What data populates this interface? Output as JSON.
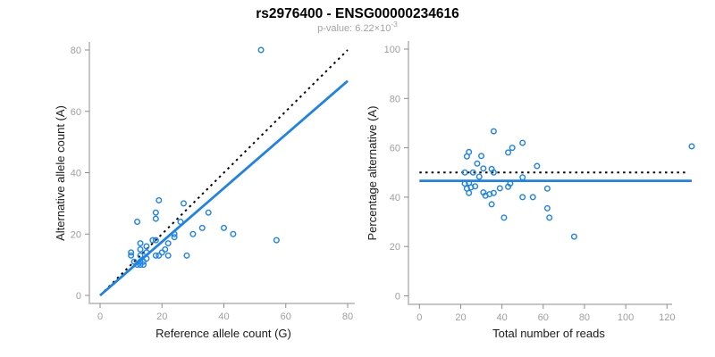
{
  "title": "rs2976400 - ENSG00000234616",
  "subtitle": {
    "prefix": "p-value: ",
    "mantissa": "6.22",
    "times": "×10",
    "exponent": "-3"
  },
  "colors": {
    "point_blue": "#1e82e6",
    "fit_blue": "#1e82e6",
    "identity_black": "#000000",
    "axis_line": "#8c8c8c",
    "tick_label": "#9e9e9e",
    "axis_title_text": "#1a1a1a",
    "subtitle_gray": "#a3a3a3"
  },
  "chart_data": [
    {
      "type": "scatter",
      "name": "allele-counts-panel",
      "xlabel": "Reference allele count (G)",
      "ylabel": "Alternative allele count (A)",
      "xlim": [
        0,
        80
      ],
      "ylim": [
        0,
        80
      ],
      "xticks": [
        0,
        20,
        40,
        60,
        80
      ],
      "yticks": [
        0,
        20,
        40,
        60,
        80
      ],
      "grid": false,
      "legend": "none",
      "points": {
        "x": [
          52,
          12,
          19,
          18,
          18,
          10,
          10,
          13,
          13,
          27,
          15,
          17,
          18,
          11,
          13,
          15,
          26,
          24,
          12,
          13,
          13,
          15,
          14,
          14,
          18,
          19,
          20,
          21,
          22,
          24,
          30,
          33,
          35,
          40,
          43,
          28,
          22,
          57
        ],
        "y": [
          80,
          24,
          31,
          27,
          25,
          14,
          13,
          17,
          15,
          30,
          16,
          18,
          18,
          11,
          13,
          14,
          24,
          20,
          10,
          11,
          10,
          12,
          10,
          11,
          13,
          13,
          14,
          15,
          17,
          19,
          20,
          22,
          27,
          22,
          20,
          13,
          13,
          18
        ]
      },
      "lines": [
        {
          "name": "identity-line",
          "style": "dotted",
          "color": "#000000",
          "from": [
            0,
            0
          ],
          "to": [
            80,
            80
          ]
        },
        {
          "name": "fit-line",
          "style": "solid",
          "color": "#1e82e6",
          "slope": 0.874,
          "intercept": 0,
          "x_from": 0,
          "x_to": 80
        }
      ]
    },
    {
      "type": "scatter",
      "name": "percentage-panel",
      "xlabel": "Total number of reads",
      "ylabel": "Percentage alternative (A)",
      "xlim": [
        0,
        132
      ],
      "ylim": [
        0,
        100
      ],
      "xticks": [
        0,
        20,
        40,
        60,
        80,
        100,
        120
      ],
      "yticks": [
        0,
        20,
        40,
        60,
        80,
        100
      ],
      "grid": false,
      "legend": "none",
      "points": {
        "x": [
          132,
          36,
          50,
          45,
          43,
          24,
          23,
          30,
          28,
          57,
          31,
          35,
          36,
          22,
          26,
          29,
          50,
          44,
          22,
          24,
          23,
          27,
          24,
          25,
          31,
          32,
          34,
          36,
          39,
          43,
          50,
          55,
          62,
          62,
          63,
          41,
          35,
          75
        ],
        "y": [
          60.6,
          66.7,
          62.0,
          60.0,
          58.1,
          58.3,
          56.5,
          56.7,
          53.6,
          52.6,
          51.6,
          51.4,
          50.0,
          50.0,
          50.0,
          48.3,
          48.0,
          45.5,
          45.5,
          45.8,
          43.5,
          44.4,
          41.7,
          44.0,
          41.9,
          40.6,
          41.2,
          41.7,
          43.6,
          44.2,
          40.0,
          40.0,
          43.5,
          35.5,
          31.7,
          31.7,
          37.1,
          24.0
        ]
      },
      "lines": [
        {
          "name": "reference-50pct-line",
          "style": "dotted",
          "color": "#000000",
          "y": 50,
          "x_from": 0,
          "x_to": 129
        },
        {
          "name": "mean-percentage-line",
          "style": "solid",
          "color": "#1e82e6",
          "y": 46.6,
          "x_from": 0,
          "x_to": 132
        }
      ]
    }
  ]
}
